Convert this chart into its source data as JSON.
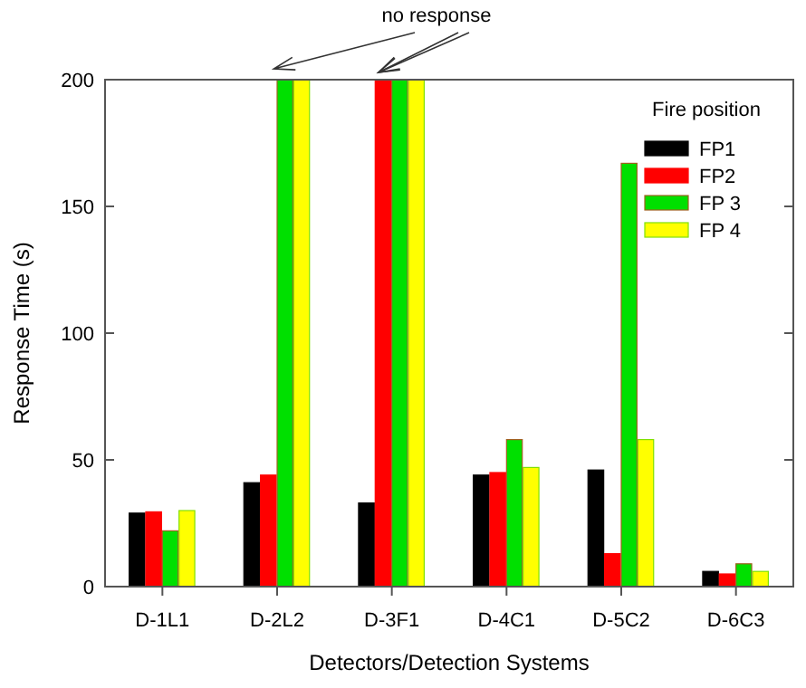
{
  "chart_data": {
    "type": "bar",
    "xlabel": "Detectors/Detection Systems",
    "ylabel": "Response Time (s)",
    "legend_title": "Fire position",
    "legend": "top right",
    "categories": [
      "D-1L1",
      "D-2L2",
      "D-3F1",
      "D-4C1",
      "D-5C2",
      "D-6C3"
    ],
    "series": [
      {
        "name": "FP1",
        "color": "#000000",
        "values": [
          29,
          41,
          33,
          44,
          46,
          6
        ]
      },
      {
        "name": "FP2",
        "color": "#ff0000",
        "values": [
          29.5,
          44,
          200,
          45,
          13,
          5
        ]
      },
      {
        "name": "FP 3",
        "color": "#00e000",
        "values": [
          22,
          200,
          200,
          58,
          167,
          9
        ]
      },
      {
        "name": "FP 4",
        "color": "#ffff00",
        "values": [
          30,
          200,
          200,
          47,
          58,
          6
        ]
      }
    ],
    "ylim": [
      0,
      200
    ],
    "yticks": [
      0,
      50,
      100,
      150,
      200
    ],
    "grid": false,
    "annotations": [
      "no response"
    ]
  }
}
